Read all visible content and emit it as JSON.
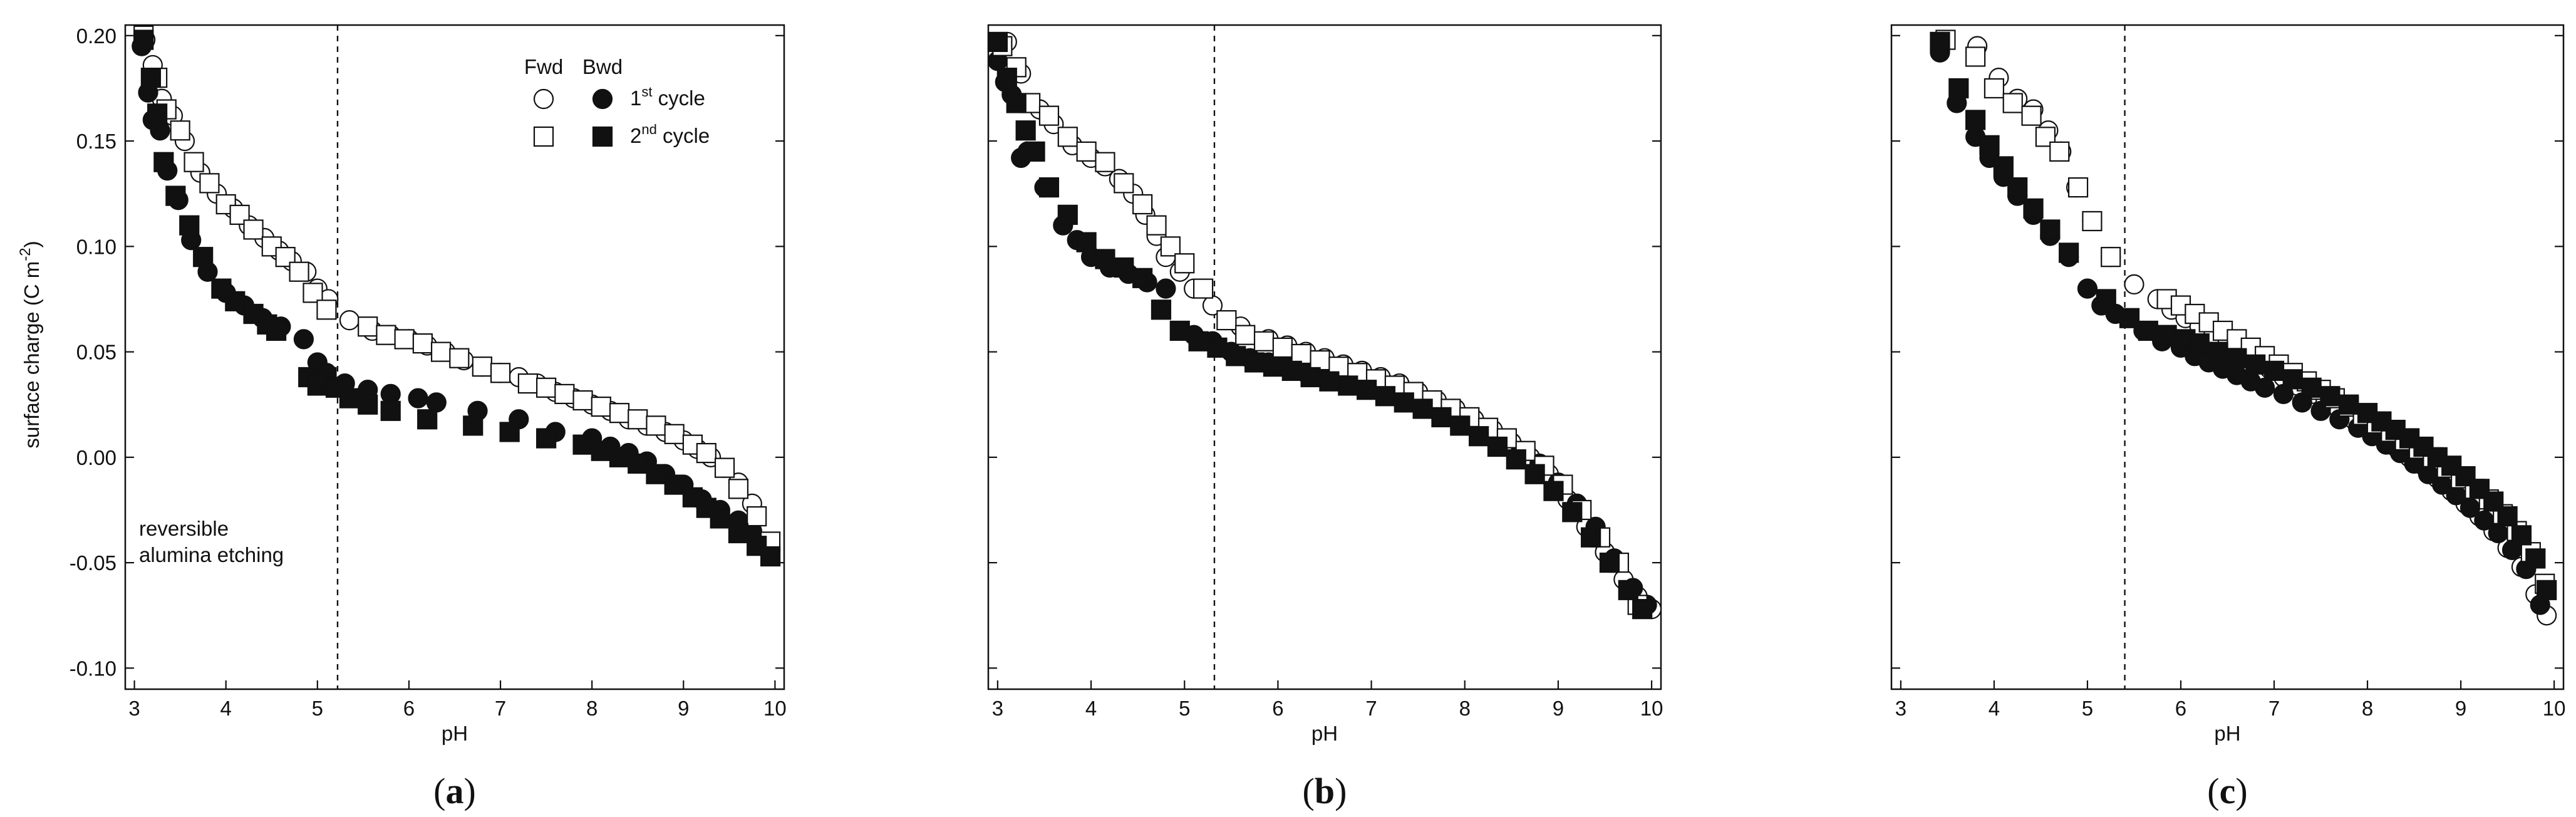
{
  "chart_data": [
    {
      "type": "scatter",
      "panel_label": "a",
      "xlabel": "pH",
      "ylabel": "surface charge (C m",
      "ylabel_sup": "-2",
      "ylabel_close": ")",
      "xlim": [
        2.9,
        10.1
      ],
      "ylim": [
        -0.11,
        0.205
      ],
      "xticks": [
        3,
        4,
        5,
        6,
        7,
        8,
        9,
        10
      ],
      "yticks": [
        -0.1,
        -0.05,
        0.0,
        0.05,
        0.1,
        0.15,
        0.2
      ],
      "ytick_labels": [
        "-0.10",
        "-0.05",
        "0.00",
        "0.05",
        "0.10",
        "0.15",
        "0.20"
      ],
      "vline_x": 5.22,
      "annotation": [
        "reversible",
        "alumina etching"
      ],
      "legend": {
        "placement": "top-right",
        "col_headers": [
          "Fwd",
          "Bwd"
        ],
        "rows": [
          {
            "label": "1",
            "sup": "st",
            "suffix": " cycle"
          },
          {
            "label": "2",
            "sup": "nd",
            "suffix": " cycle"
          }
        ]
      },
      "series": [
        {
          "marker": "circle-open",
          "x": [
            3.12,
            3.2,
            3.3,
            3.42,
            3.55,
            3.72,
            3.9,
            4.08,
            4.25,
            4.42,
            4.58,
            4.72,
            4.88,
            5.0,
            5.12,
            5.35,
            5.6,
            5.8,
            6.0,
            6.2,
            6.4,
            6.6,
            6.8,
            7.0,
            7.2,
            7.4,
            7.6,
            7.8,
            8.0,
            8.2,
            8.4,
            8.6,
            8.8,
            9.0,
            9.15,
            9.3,
            9.45,
            9.6,
            9.75
          ],
          "y": [
            0.198,
            0.186,
            0.17,
            0.162,
            0.15,
            0.135,
            0.125,
            0.118,
            0.11,
            0.104,
            0.098,
            0.093,
            0.088,
            0.08,
            0.075,
            0.065,
            0.06,
            0.058,
            0.056,
            0.053,
            0.05,
            0.046,
            0.043,
            0.04,
            0.038,
            0.035,
            0.031,
            0.028,
            0.025,
            0.022,
            0.018,
            0.015,
            0.012,
            0.008,
            0.004,
            0.0,
            -0.005,
            -0.012,
            -0.022
          ]
        },
        {
          "marker": "circle-filled",
          "x": [
            3.08,
            3.15,
            3.2,
            3.28,
            3.36,
            3.48,
            3.62,
            3.8,
            4.0,
            4.2,
            4.4,
            4.6,
            4.85,
            5.0,
            5.1,
            5.3,
            5.55,
            5.8,
            6.1,
            6.3,
            6.75,
            7.2,
            7.6,
            8.0,
            8.2,
            8.4,
            8.6,
            8.8,
            9.0,
            9.2,
            9.4,
            9.6,
            9.75
          ],
          "y": [
            0.195,
            0.173,
            0.16,
            0.155,
            0.136,
            0.122,
            0.103,
            0.088,
            0.078,
            0.072,
            0.066,
            0.062,
            0.056,
            0.045,
            0.04,
            0.035,
            0.032,
            0.03,
            0.028,
            0.026,
            0.022,
            0.018,
            0.012,
            0.009,
            0.005,
            0.002,
            -0.002,
            -0.008,
            -0.013,
            -0.02,
            -0.025,
            -0.03,
            -0.035
          ]
        },
        {
          "marker": "square-open",
          "x": [
            3.1,
            3.25,
            3.35,
            3.5,
            3.65,
            3.82,
            4.0,
            4.15,
            4.3,
            4.5,
            4.65,
            4.8,
            4.95,
            5.1,
            5.55,
            5.75,
            5.95,
            6.15,
            6.35,
            6.55,
            6.8,
            7.0,
            7.3,
            7.5,
            7.7,
            7.9,
            8.1,
            8.3,
            8.5,
            8.7,
            8.9,
            9.1,
            9.25,
            9.45,
            9.6,
            9.8,
            9.95
          ],
          "y": [
            0.2,
            0.18,
            0.165,
            0.155,
            0.14,
            0.13,
            0.12,
            0.115,
            0.108,
            0.1,
            0.095,
            0.088,
            0.078,
            0.07,
            0.062,
            0.058,
            0.056,
            0.054,
            0.05,
            0.047,
            0.043,
            0.04,
            0.035,
            0.033,
            0.03,
            0.027,
            0.024,
            0.021,
            0.018,
            0.015,
            0.011,
            0.006,
            0.002,
            -0.005,
            -0.015,
            -0.028,
            -0.04
          ]
        },
        {
          "marker": "square-filled",
          "x": [
            3.1,
            3.18,
            3.25,
            3.32,
            3.45,
            3.6,
            3.75,
            3.95,
            4.1,
            4.3,
            4.45,
            4.55,
            4.9,
            5.0,
            5.1,
            5.2,
            5.35,
            5.55,
            5.8,
            6.2,
            6.7,
            7.1,
            7.5,
            7.9,
            8.1,
            8.3,
            8.5,
            8.7,
            8.9,
            9.1,
            9.25,
            9.4,
            9.6,
            9.8,
            9.95
          ],
          "y": [
            0.198,
            0.18,
            0.163,
            0.14,
            0.124,
            0.11,
            0.095,
            0.08,
            0.074,
            0.068,
            0.063,
            0.06,
            0.038,
            0.034,
            0.038,
            0.033,
            0.028,
            0.025,
            0.022,
            0.018,
            0.015,
            0.012,
            0.009,
            0.006,
            0.003,
            0.0,
            -0.003,
            -0.008,
            -0.013,
            -0.019,
            -0.024,
            -0.029,
            -0.036,
            -0.042,
            -0.047
          ]
        }
      ]
    },
    {
      "type": "scatter",
      "panel_label": "b",
      "xlabel": "pH",
      "xlim": [
        2.9,
        10.1
      ],
      "ylim": [
        -0.11,
        0.205
      ],
      "xticks": [
        3,
        4,
        5,
        6,
        7,
        8,
        9,
        10
      ],
      "yticks": [
        -0.1,
        -0.05,
        0.0,
        0.05,
        0.1,
        0.15,
        0.2
      ],
      "vline_x": 5.32,
      "series": [
        {
          "marker": "circle-open",
          "x": [
            3.1,
            3.25,
            3.45,
            3.6,
            3.8,
            4.0,
            4.15,
            4.3,
            4.45,
            4.58,
            4.7,
            4.8,
            4.95,
            5.1,
            5.3,
            5.6,
            5.9,
            6.1,
            6.3,
            6.5,
            6.7,
            6.9,
            7.1,
            7.3,
            7.5,
            7.7,
            7.9,
            8.1,
            8.3,
            8.5,
            8.7,
            8.9,
            9.1,
            9.3,
            9.5,
            9.7,
            9.85,
            10.0
          ],
          "y": [
            0.197,
            0.182,
            0.165,
            0.158,
            0.148,
            0.142,
            0.138,
            0.132,
            0.125,
            0.115,
            0.105,
            0.095,
            0.088,
            0.08,
            0.072,
            0.062,
            0.056,
            0.053,
            0.05,
            0.047,
            0.044,
            0.041,
            0.038,
            0.035,
            0.031,
            0.027,
            0.023,
            0.018,
            0.013,
            0.007,
            0.0,
            -0.008,
            -0.02,
            -0.033,
            -0.045,
            -0.058,
            -0.066,
            -0.072
          ]
        },
        {
          "marker": "circle-filled",
          "x": [
            3.0,
            3.08,
            3.15,
            3.25,
            3.32,
            3.5,
            3.7,
            3.85,
            4.0,
            4.2,
            4.4,
            4.6,
            4.8,
            5.1,
            5.3,
            5.5,
            5.7,
            5.9,
            6.1,
            6.3,
            6.5,
            6.8,
            7.0,
            7.2,
            7.4,
            7.6,
            7.8,
            8.0,
            8.2,
            8.4,
            8.6,
            8.8,
            9.0,
            9.2,
            9.4,
            9.6,
            9.8,
            9.95
          ],
          "y": [
            0.188,
            0.178,
            0.172,
            0.142,
            0.145,
            0.128,
            0.11,
            0.103,
            0.095,
            0.09,
            0.087,
            0.083,
            0.08,
            0.058,
            0.055,
            0.05,
            0.047,
            0.045,
            0.043,
            0.04,
            0.038,
            0.035,
            0.034,
            0.031,
            0.028,
            0.025,
            0.021,
            0.017,
            0.013,
            0.008,
            0.003,
            -0.003,
            -0.012,
            -0.022,
            -0.033,
            -0.048,
            -0.062,
            -0.07
          ]
        },
        {
          "marker": "square-open",
          "x": [
            3.05,
            3.2,
            3.35,
            3.55,
            3.75,
            3.95,
            4.15,
            4.35,
            4.55,
            4.7,
            4.85,
            5.0,
            5.2,
            5.45,
            5.65,
            5.85,
            6.05,
            6.25,
            6.45,
            6.65,
            6.85,
            7.05,
            7.25,
            7.45,
            7.65,
            7.85,
            8.05,
            8.25,
            8.45,
            8.65,
            8.85,
            9.05,
            9.25,
            9.45,
            9.65,
            9.85
          ],
          "y": [
            0.195,
            0.185,
            0.168,
            0.162,
            0.152,
            0.145,
            0.14,
            0.13,
            0.12,
            0.11,
            0.1,
            0.092,
            0.08,
            0.065,
            0.058,
            0.055,
            0.052,
            0.049,
            0.046,
            0.043,
            0.04,
            0.037,
            0.034,
            0.031,
            0.027,
            0.023,
            0.019,
            0.014,
            0.009,
            0.003,
            -0.004,
            -0.013,
            -0.025,
            -0.038,
            -0.05,
            -0.07
          ]
        },
        {
          "marker": "square-filled",
          "x": [
            3.0,
            3.1,
            3.2,
            3.3,
            3.4,
            3.55,
            3.75,
            3.95,
            4.15,
            4.35,
            4.55,
            4.75,
            4.95,
            5.15,
            5.35,
            5.55,
            5.75,
            5.95,
            6.15,
            6.35,
            6.55,
            6.75,
            6.95,
            7.15,
            7.35,
            7.55,
            7.75,
            7.95,
            8.15,
            8.35,
            8.55,
            8.75,
            8.95,
            9.15,
            9.35,
            9.55,
            9.75,
            9.9
          ],
          "y": [
            0.197,
            0.18,
            0.168,
            0.155,
            0.145,
            0.128,
            0.115,
            0.102,
            0.094,
            0.09,
            0.085,
            0.07,
            0.06,
            0.055,
            0.052,
            0.048,
            0.045,
            0.043,
            0.041,
            0.038,
            0.036,
            0.034,
            0.032,
            0.029,
            0.026,
            0.023,
            0.019,
            0.015,
            0.01,
            0.005,
            -0.001,
            -0.008,
            -0.016,
            -0.026,
            -0.038,
            -0.05,
            -0.063,
            -0.072
          ]
        }
      ]
    },
    {
      "type": "scatter",
      "panel_label": "c",
      "xlabel": "pH",
      "xlim": [
        2.9,
        10.1
      ],
      "ylim": [
        -0.11,
        0.205
      ],
      "xticks": [
        3,
        4,
        5,
        6,
        7,
        8,
        9,
        10
      ],
      "yticks": [
        -0.1,
        -0.05,
        0.0,
        0.05,
        0.1,
        0.15,
        0.2
      ],
      "vline_x": 5.4,
      "series": [
        {
          "marker": "circle-open",
          "x": [
            3.45,
            3.82,
            4.05,
            4.25,
            4.42,
            4.58,
            4.72,
            4.88,
            5.05,
            5.25,
            5.5,
            5.75,
            5.9,
            6.05,
            6.2,
            6.35,
            6.5,
            6.65,
            6.8,
            6.95,
            7.1,
            7.25,
            7.4,
            7.55,
            7.7,
            7.85,
            8.0,
            8.15,
            8.3,
            8.45,
            8.6,
            8.75,
            8.9,
            9.05,
            9.2,
            9.35,
            9.5,
            9.65,
            9.8,
            9.92
          ],
          "y": [
            0.198,
            0.195,
            0.18,
            0.17,
            0.165,
            0.155,
            0.145,
            0.128,
            0.112,
            0.095,
            0.082,
            0.075,
            0.07,
            0.066,
            0.062,
            0.058,
            0.054,
            0.05,
            0.046,
            0.042,
            0.038,
            0.034,
            0.03,
            0.026,
            0.022,
            0.018,
            0.014,
            0.01,
            0.005,
            0.0,
            -0.004,
            -0.01,
            -0.016,
            -0.022,
            -0.028,
            -0.035,
            -0.043,
            -0.052,
            -0.065,
            -0.075
          ]
        },
        {
          "marker": "circle-filled",
          "x": [
            3.42,
            3.6,
            3.8,
            3.95,
            4.1,
            4.25,
            4.42,
            4.6,
            4.8,
            5.0,
            5.15,
            5.3,
            5.6,
            5.8,
            6.0,
            6.15,
            6.3,
            6.45,
            6.6,
            6.75,
            6.9,
            7.1,
            7.3,
            7.5,
            7.7,
            7.9,
            8.05,
            8.2,
            8.35,
            8.5,
            8.65,
            8.8,
            8.95,
            9.1,
            9.25,
            9.4,
            9.55,
            9.7,
            9.85
          ],
          "y": [
            0.192,
            0.168,
            0.152,
            0.142,
            0.133,
            0.124,
            0.115,
            0.105,
            0.095,
            0.08,
            0.072,
            0.068,
            0.06,
            0.055,
            0.052,
            0.048,
            0.045,
            0.042,
            0.039,
            0.036,
            0.033,
            0.03,
            0.026,
            0.022,
            0.018,
            0.014,
            0.01,
            0.006,
            0.002,
            -0.003,
            -0.008,
            -0.013,
            -0.018,
            -0.024,
            -0.03,
            -0.036,
            -0.044,
            -0.053,
            -0.07
          ]
        },
        {
          "marker": "square-open",
          "x": [
            3.48,
            3.8,
            4.0,
            4.2,
            4.4,
            4.55,
            4.7,
            4.9,
            5.05,
            5.25,
            5.85,
            6.0,
            6.15,
            6.3,
            6.45,
            6.6,
            6.75,
            6.9,
            7.05,
            7.2,
            7.35,
            7.5,
            7.65,
            7.8,
            7.95,
            8.1,
            8.25,
            8.4,
            8.55,
            8.7,
            8.85,
            9.0,
            9.15,
            9.3,
            9.45,
            9.6,
            9.75,
            9.9
          ],
          "y": [
            0.198,
            0.19,
            0.175,
            0.168,
            0.162,
            0.152,
            0.145,
            0.128,
            0.112,
            0.095,
            0.075,
            0.072,
            0.068,
            0.064,
            0.06,
            0.056,
            0.052,
            0.048,
            0.044,
            0.04,
            0.036,
            0.032,
            0.028,
            0.024,
            0.02,
            0.016,
            0.012,
            0.008,
            0.004,
            0.0,
            -0.005,
            -0.01,
            -0.015,
            -0.02,
            -0.027,
            -0.035,
            -0.045,
            -0.06
          ]
        },
        {
          "marker": "square-filled",
          "x": [
            3.42,
            3.62,
            3.8,
            3.95,
            4.1,
            4.25,
            4.42,
            4.6,
            4.8,
            5.2,
            5.45,
            5.65,
            5.85,
            6.05,
            6.2,
            6.4,
            6.6,
            6.8,
            7.0,
            7.2,
            7.4,
            7.6,
            7.8,
            8.0,
            8.15,
            8.3,
            8.45,
            8.6,
            8.75,
            8.9,
            9.05,
            9.2,
            9.35,
            9.5,
            9.65,
            9.8,
            9.92
          ],
          "y": [
            0.197,
            0.175,
            0.16,
            0.148,
            0.138,
            0.128,
            0.118,
            0.108,
            0.097,
            0.075,
            0.066,
            0.06,
            0.058,
            0.056,
            0.054,
            0.05,
            0.047,
            0.044,
            0.041,
            0.037,
            0.033,
            0.029,
            0.025,
            0.021,
            0.017,
            0.013,
            0.009,
            0.005,
            0.0,
            -0.004,
            -0.009,
            -0.015,
            -0.021,
            -0.028,
            -0.037,
            -0.048,
            -0.063
          ]
        }
      ]
    }
  ]
}
